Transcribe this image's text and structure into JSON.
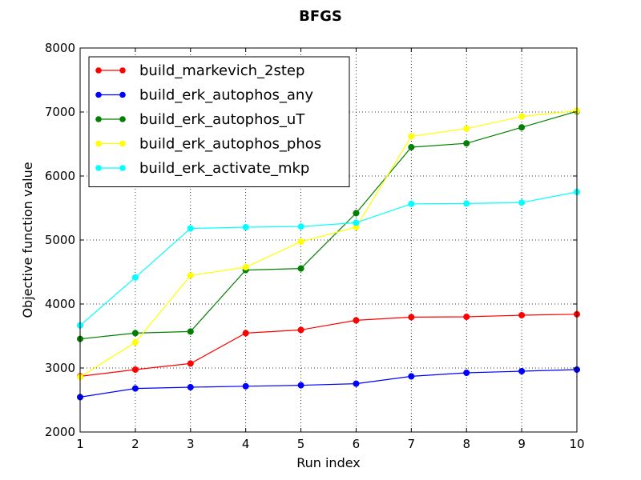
{
  "chart_data": {
    "type": "line",
    "title": "BFGS",
    "xlabel": "Run index",
    "ylabel": "Objective function value",
    "xlim": [
      1,
      10
    ],
    "ylim": [
      2000,
      8000
    ],
    "xticks": [
      1,
      2,
      3,
      4,
      5,
      6,
      7,
      8,
      9,
      10
    ],
    "yticks": [
      2000,
      3000,
      4000,
      5000,
      6000,
      7000,
      8000
    ],
    "grid": true,
    "legend_position": "top-left",
    "x": [
      1,
      2,
      3,
      4,
      5,
      6,
      7,
      8,
      9,
      10
    ],
    "series": [
      {
        "name": "build_markevich_2step",
        "color": "#ff0000",
        "values": [
          2870,
          2975,
          3070,
          3545,
          3595,
          3745,
          3795,
          3800,
          3825,
          3840
        ]
      },
      {
        "name": "build_erk_autophos_any",
        "color": "#0000ff",
        "values": [
          2545,
          2680,
          2700,
          2715,
          2730,
          2755,
          2870,
          2925,
          2950,
          2975
        ]
      },
      {
        "name": "build_erk_autophos_uT",
        "color": "#008000",
        "values": [
          3455,
          3545,
          3570,
          4530,
          4555,
          5420,
          6450,
          6510,
          6760,
          7010
        ]
      },
      {
        "name": "build_erk_autophos_phos",
        "color": "#ffff00",
        "values": [
          2860,
          3400,
          4445,
          4575,
          4975,
          5200,
          6620,
          6740,
          6930,
          7020
        ]
      },
      {
        "name": "build_erk_activate_mkp",
        "color": "#00ffff",
        "values": [
          3665,
          4415,
          5180,
          5200,
          5210,
          5270,
          5565,
          5570,
          5585,
          5750
        ]
      }
    ]
  }
}
